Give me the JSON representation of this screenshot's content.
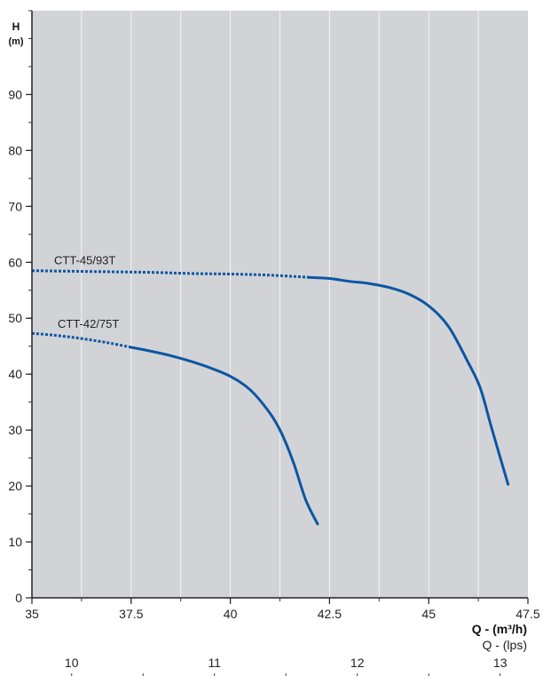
{
  "chart_data": {
    "type": "line",
    "xlabel": "Q - (m³/h)",
    "x2label": "Q - (lps)",
    "ylabel": "H",
    "yunit": "(m)",
    "xlim": [
      35,
      47.5
    ],
    "ylim": [
      0,
      105
    ],
    "x_ticks": [
      "35",
      "37.5",
      "40",
      "42.5",
      "45",
      "47.5"
    ],
    "x_tick_values": [
      35,
      37.5,
      40,
      42.5,
      45,
      47.5
    ],
    "y_ticks": [
      "0",
      "10",
      "20",
      "30",
      "40",
      "50",
      "60",
      "70",
      "80",
      "90"
    ],
    "y_tick_values": [
      0,
      10,
      20,
      30,
      40,
      50,
      60,
      70,
      80,
      90
    ],
    "lps_ticks": [
      "10",
      "11",
      "12",
      "13"
    ],
    "lps_tick_values": [
      10,
      11,
      12,
      13
    ],
    "grid": true,
    "background": "#d2d3d6",
    "line_color": "#0b56a4",
    "series": [
      {
        "name": "CTT-45/93T",
        "dashed_until_x": 42.3,
        "x": [
          35,
          36,
          37,
          38,
          39,
          40,
          41,
          42,
          42.5,
          43,
          43.5,
          44,
          44.5,
          45,
          45.5,
          46,
          46.3,
          46.6,
          47
        ],
        "y": [
          58.5,
          58.4,
          58.3,
          58.2,
          58.0,
          57.9,
          57.7,
          57.3,
          57.1,
          56.6,
          56.2,
          55.5,
          54.3,
          52.2,
          48.5,
          42.0,
          37.5,
          30.0,
          20.3
        ]
      },
      {
        "name": "CTT-42/75T",
        "dashed_until_x": 37.7,
        "x": [
          35,
          35.5,
          36,
          36.5,
          37,
          37.5,
          38,
          38.5,
          39,
          39.5,
          40,
          40.5,
          41,
          41.3,
          41.6,
          41.9,
          42.2
        ],
        "y": [
          47.3,
          47.0,
          46.6,
          46.1,
          45.5,
          44.8,
          44.1,
          43.3,
          42.3,
          41.1,
          39.6,
          37.2,
          33.0,
          29.3,
          24.0,
          17.5,
          13.2
        ]
      }
    ]
  }
}
